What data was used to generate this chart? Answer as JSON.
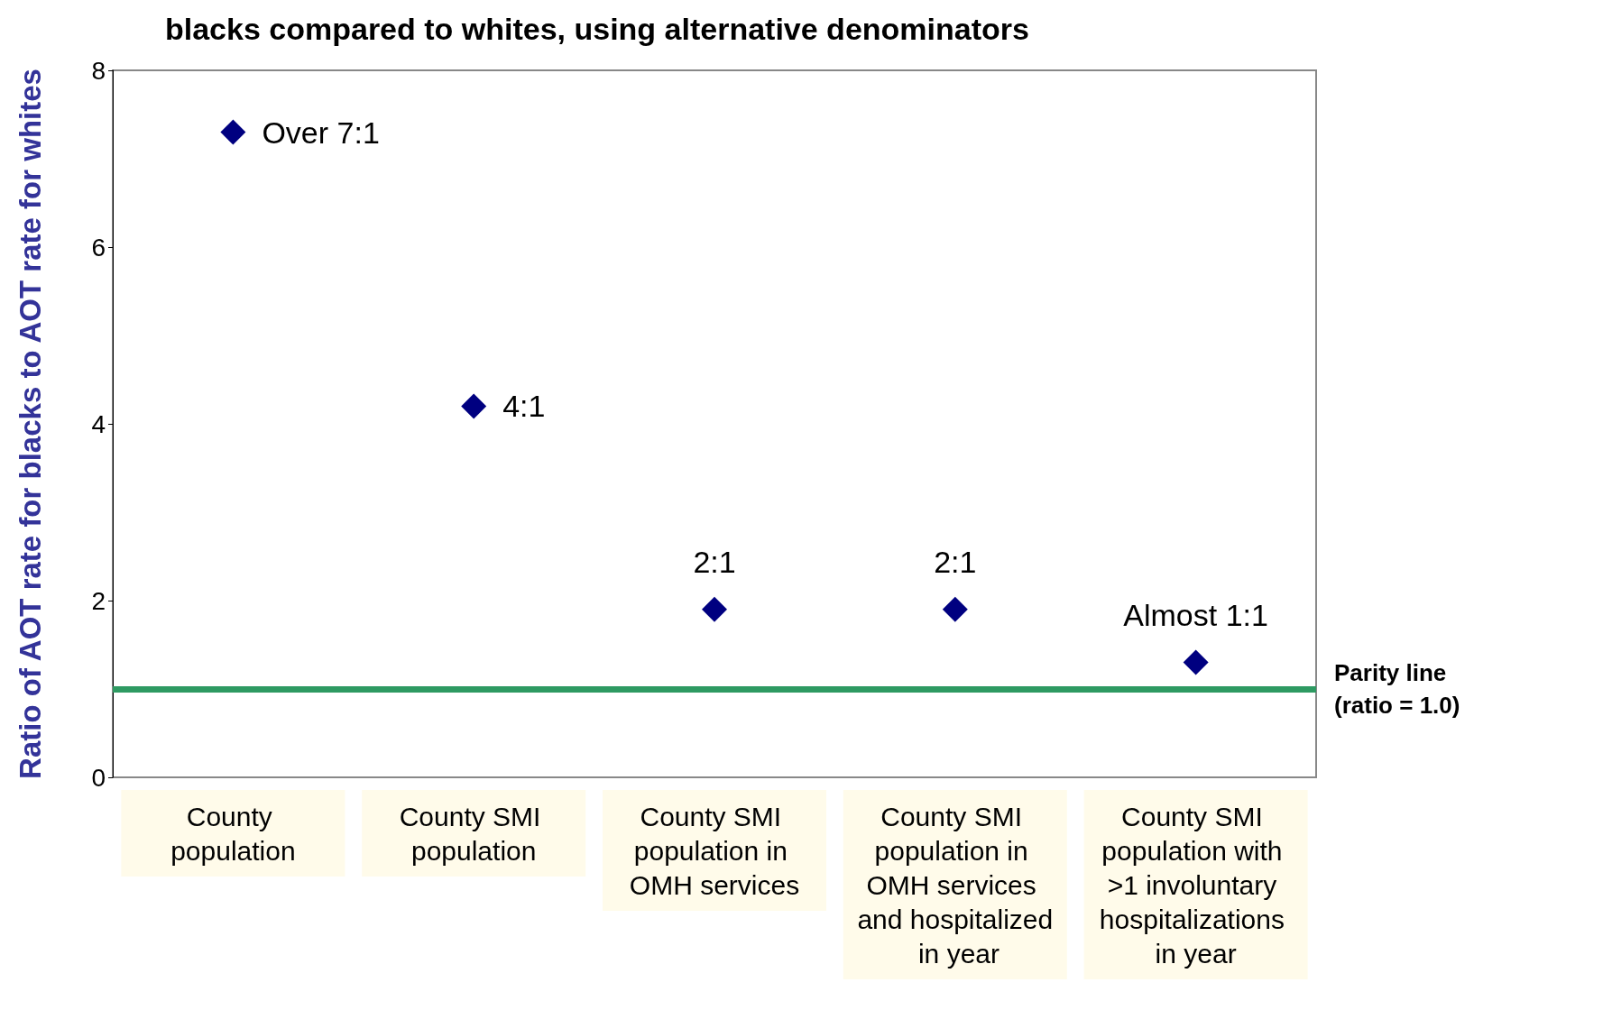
{
  "chart_data": {
    "type": "scatter",
    "title": "blacks compared to whites, using alternative denominators",
    "ylabel": "Ratio of AOT rate for blacks to AOT rate for whites",
    "categories": [
      "County population",
      "County SMI population",
      "County SMI population in OMH services",
      "County SMI population in OMH services and hospitalized in year",
      "County SMI population with >1 involuntary hospitalizations in year"
    ],
    "series": [
      {
        "color": "#000080",
        "values": [
          7.3,
          4.2,
          1.9,
          1.9,
          1.3
        ],
        "value_labels": [
          "Over 7:1",
          "4:1",
          "2:1",
          "2:1",
          "Almost 1:1"
        ]
      }
    ],
    "ylim": [
      0,
      8
    ],
    "yticks": [
      0,
      2,
      4,
      6,
      8
    ],
    "grid": false,
    "marker": "diamond",
    "ref_lines": [
      {
        "axis": "y",
        "value": 1,
        "label": "Parity line\n(ratio = 1.0)",
        "color": "#2e9a62"
      }
    ]
  }
}
